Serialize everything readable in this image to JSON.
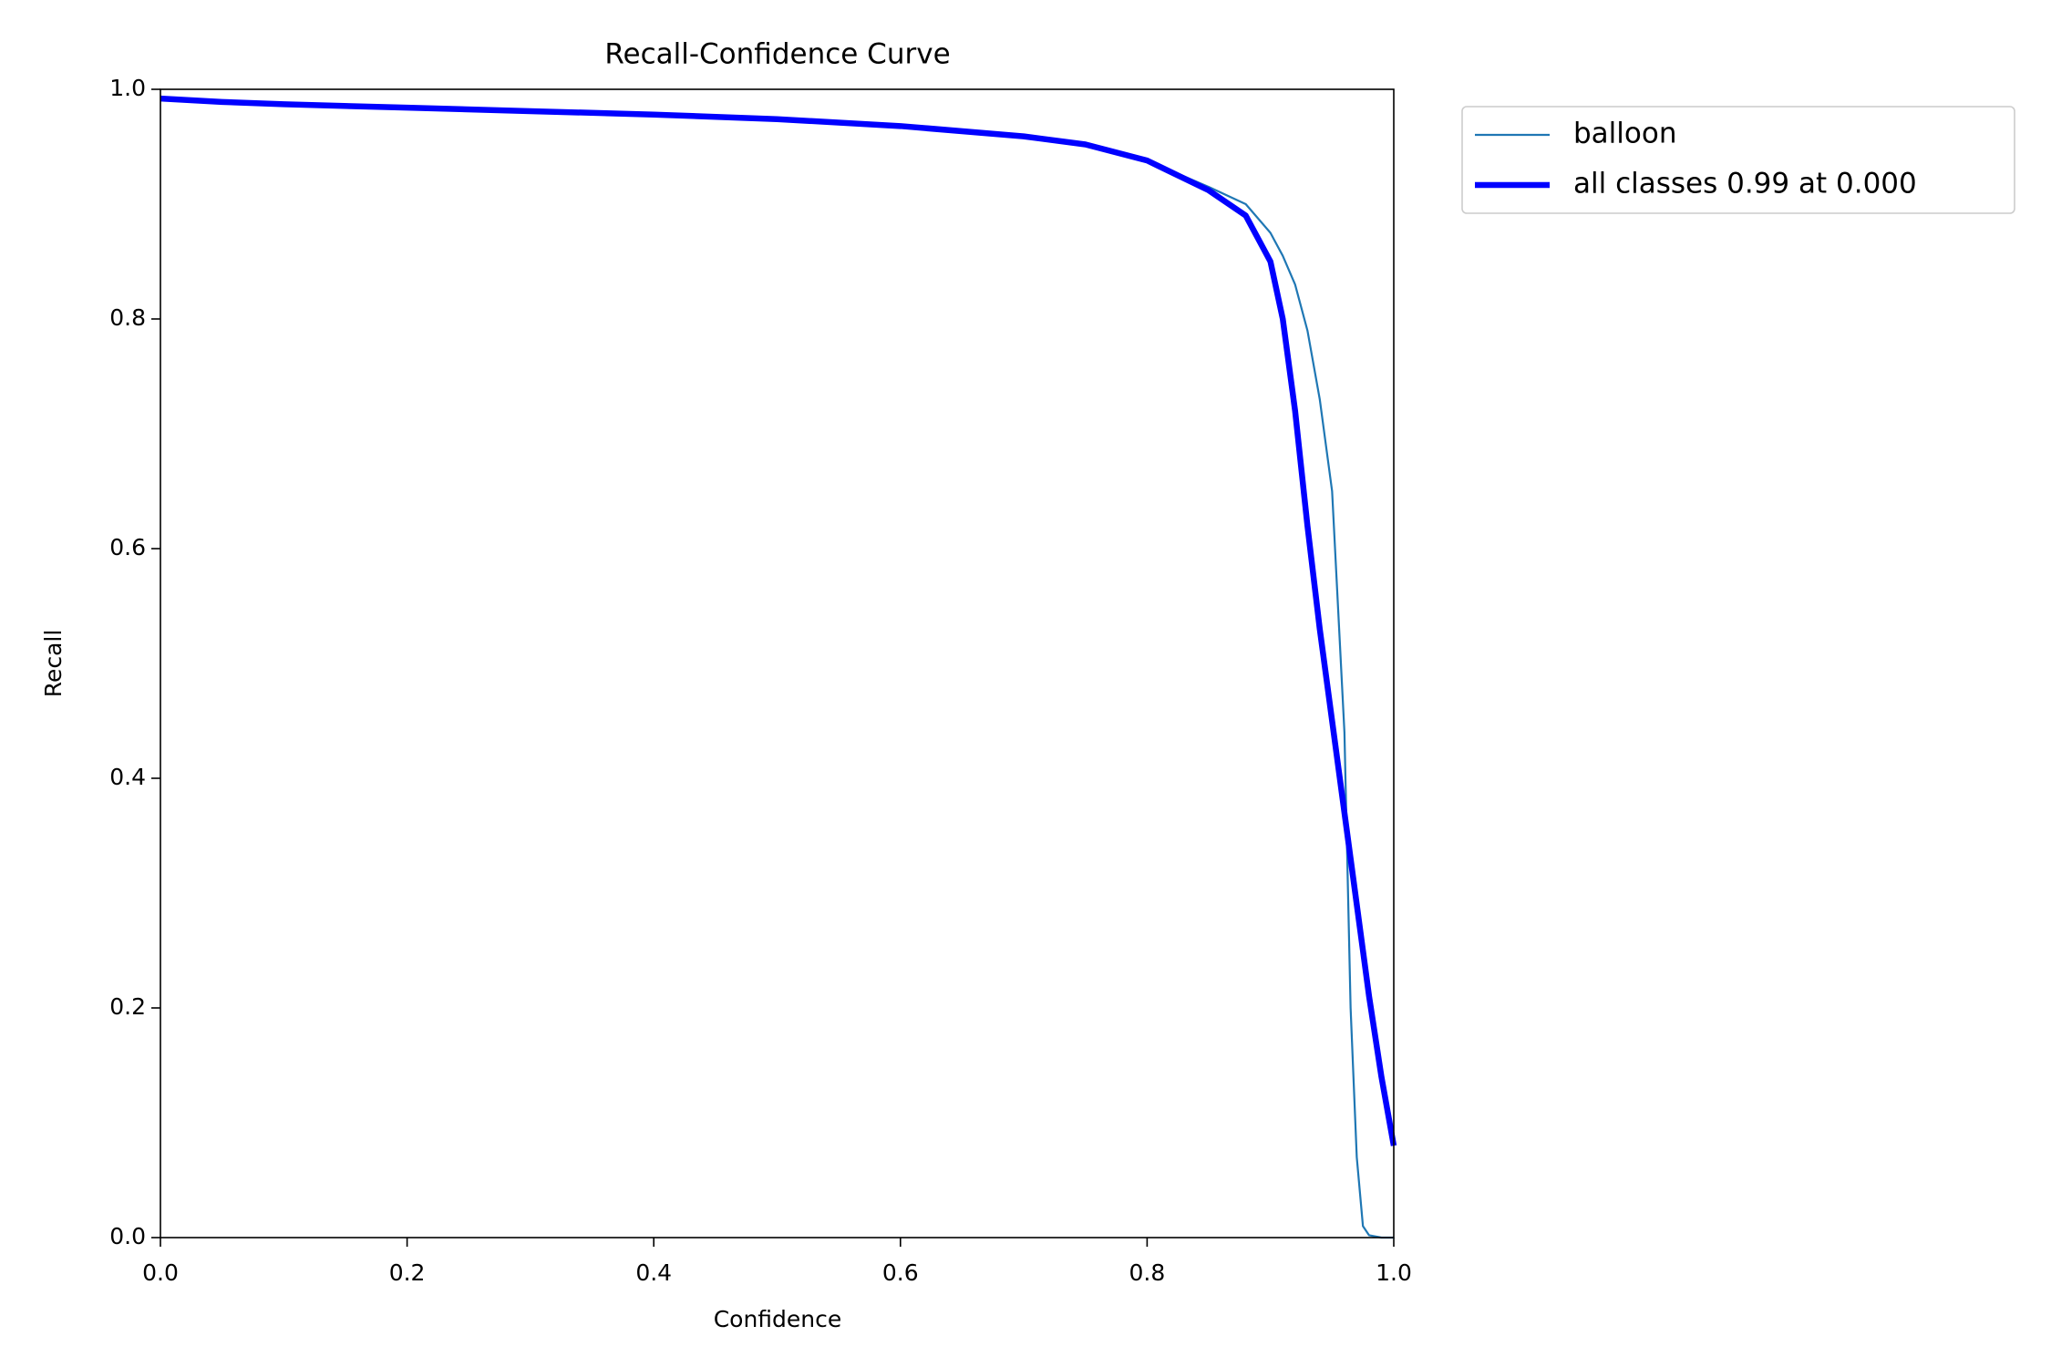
{
  "chart_data": {
    "type": "line",
    "title": "Recall-Confidence Curve",
    "x_label": "Confidence",
    "y_label": "Recall",
    "x": [
      0,
      0.05,
      0.1,
      0.2,
      0.3,
      0.4,
      0.5,
      0.6,
      0.7,
      0.75,
      0.8,
      0.85,
      0.88,
      0.9,
      0.91,
      0.92,
      0.93,
      0.94,
      0.95,
      0.96,
      0.965,
      0.97,
      0.975,
      0.98,
      0.99,
      1.0
    ],
    "series": [
      {
        "name": "balloon",
        "color": "#1f77b4",
        "width": "thin",
        "values": [
          0.992,
          0.989,
          0.987,
          0.984,
          0.981,
          0.978,
          0.974,
          0.968,
          0.959,
          0.952,
          0.938,
          0.915,
          0.9,
          0.875,
          0.855,
          0.83,
          0.79,
          0.73,
          0.65,
          0.44,
          0.2,
          0.07,
          0.01,
          0.002,
          0,
          0
        ]
      },
      {
        "name": "all classes 0.99 at 0.000",
        "color": "#0000ff",
        "width": "thick",
        "values": [
          0.992,
          0.989,
          0.987,
          0.984,
          0.981,
          0.978,
          0.974,
          0.968,
          0.959,
          0.952,
          0.938,
          0.912,
          0.89,
          0.85,
          0.8,
          0.72,
          0.62,
          0.53,
          0.45,
          0.37,
          0.33,
          0.29,
          0.25,
          0.21,
          0.14,
          0.08
        ]
      }
    ],
    "xlim": [
      0,
      1
    ],
    "ylim": [
      0,
      1
    ],
    "xticks": [
      {
        "value": 0,
        "label": "0.0"
      },
      0.2,
      0.4,
      0.6,
      0.8,
      {
        "value": 1,
        "label": "1.0"
      }
    ],
    "yticks": [
      {
        "value": 0,
        "label": "0.0"
      },
      0.2,
      0.4,
      0.6,
      0.8,
      {
        "value": 1,
        "label": "1.0"
      }
    ],
    "legend": "outside-upper-right",
    "grid": false
  }
}
